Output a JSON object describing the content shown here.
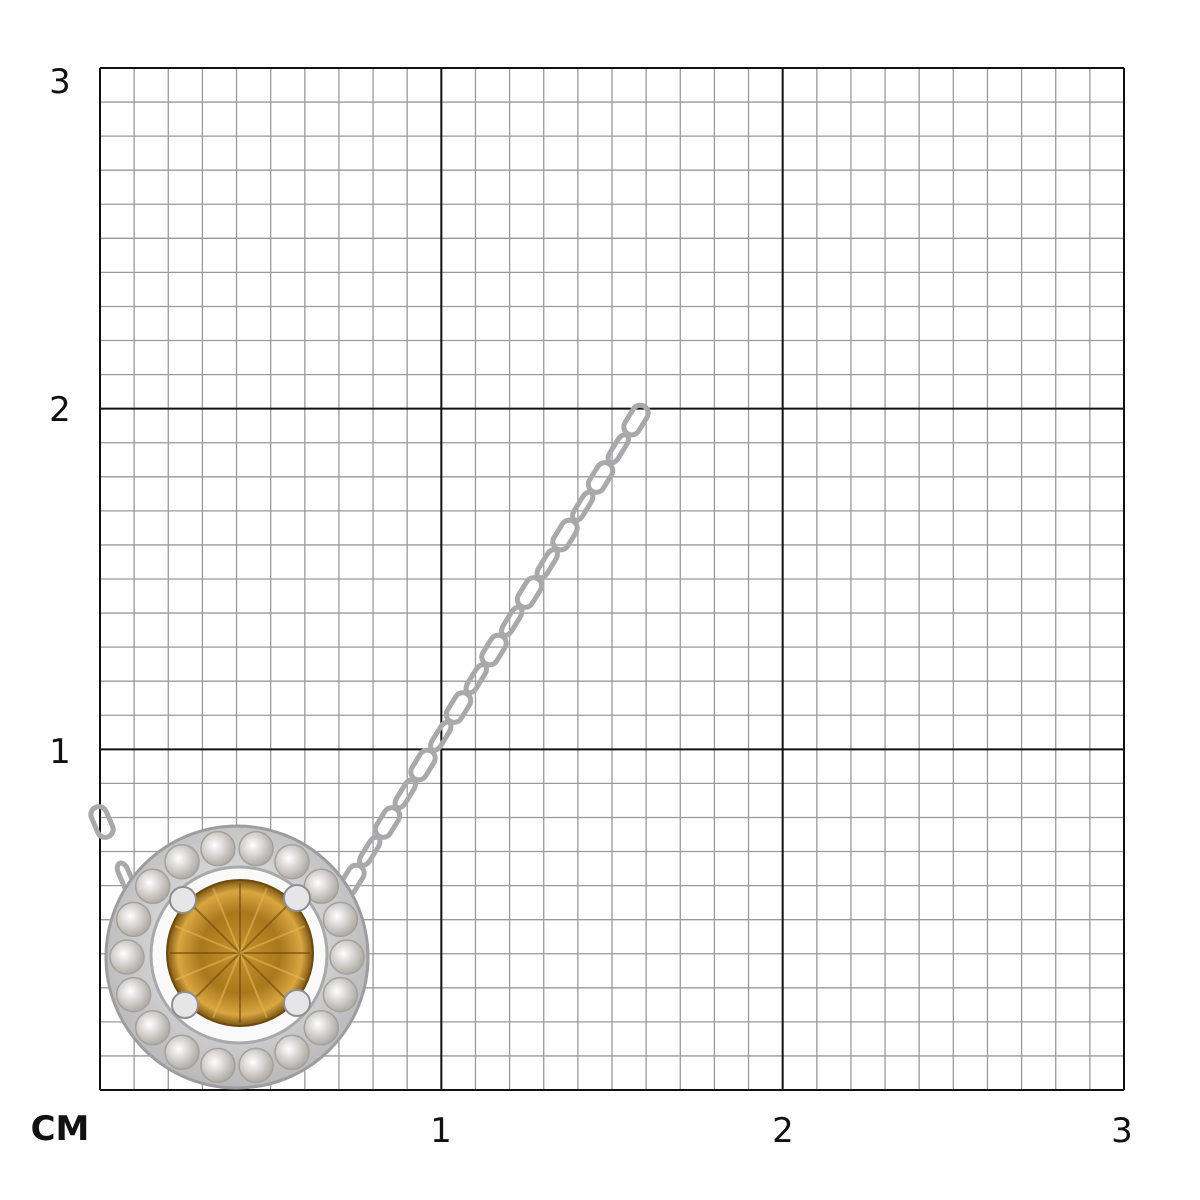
{
  "scale": {
    "unit": "CM",
    "y_labels": [
      "1",
      "2",
      "3"
    ],
    "x_labels": [
      "1",
      "2",
      "3"
    ],
    "range_cm": [
      0,
      3
    ],
    "minor_divisions_per_cm": 10
  },
  "colors": {
    "grid_minor": "#9a9a9a",
    "grid_major": "#111111",
    "metal": "#d4d4d6",
    "center_stone": "#b8861f"
  },
  "product": {
    "type": "halo pendant necklace",
    "center_stone_color": "cognac"
  }
}
